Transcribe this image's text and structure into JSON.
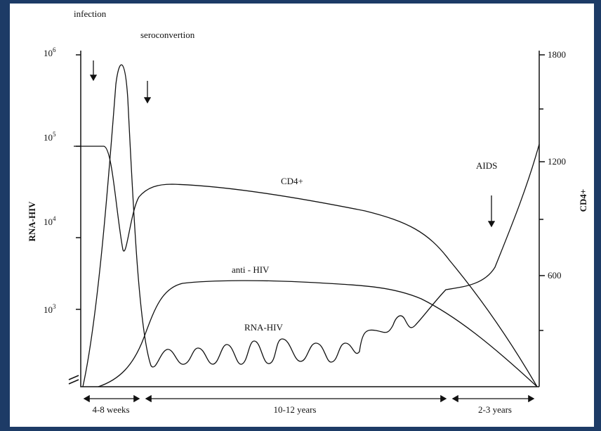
{
  "annotations": {
    "infection": "infection",
    "seroconversion": "seroconvertion",
    "aids": "AIDS"
  },
  "curves": {
    "cd4": "CD4+",
    "anti_hiv": "anti - HIV",
    "rna_hiv": "RNA-HIV"
  },
  "left_axis": {
    "title": "RNA-HIV",
    "ticks": [
      {
        "base": "10",
        "exp": "6"
      },
      {
        "base": "10",
        "exp": "5"
      },
      {
        "base": "10",
        "exp": "4"
      },
      {
        "base": "10",
        "exp": "3"
      }
    ]
  },
  "right_axis": {
    "title": "CD4+",
    "ticks": [
      "1800",
      "1200",
      "600"
    ]
  },
  "periods": [
    "4-8 weeks",
    "10-12 years",
    "2-3 years"
  ]
}
